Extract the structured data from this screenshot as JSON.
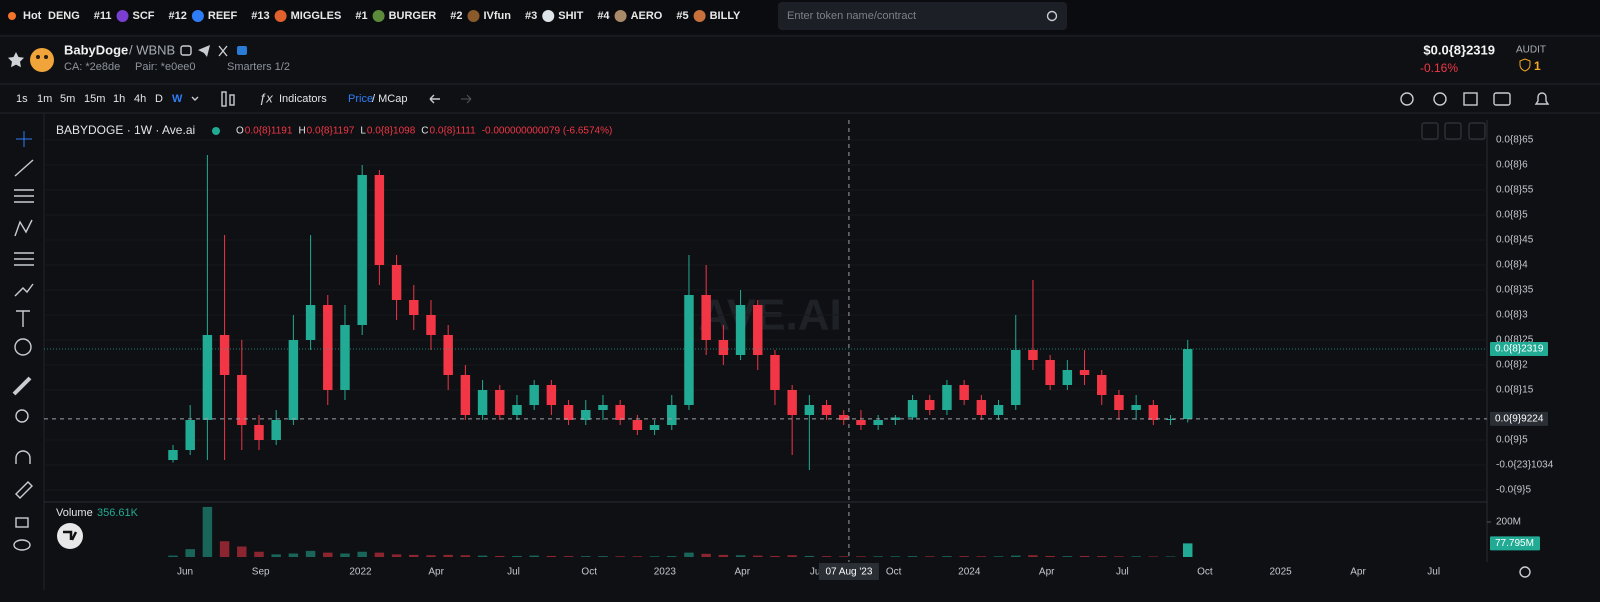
{
  "topbar": {
    "hot": "Hot",
    "trending": [
      {
        "name": "DENG"
      },
      {
        "rank": "#11",
        "name": "SCF"
      },
      {
        "rank": "#12",
        "name": "REEF"
      },
      {
        "rank": "#13",
        "name": "MIGGLES"
      },
      {
        "rank": "#1",
        "name": "BURGER"
      },
      {
        "rank": "#2",
        "name": "IVfun"
      },
      {
        "rank": "#3",
        "name": "SHIT"
      },
      {
        "rank": "#4",
        "name": "AERO"
      },
      {
        "rank": "#5",
        "name": "BILLY"
      }
    ],
    "search_placeholder": "Enter token name/contract"
  },
  "token": {
    "name": "BabyDoge",
    "pair": "/ WBNB",
    "ca": "CA: *2e8de",
    "pair_address": "Pair: *e0ee0",
    "smarters": "Smarters 1/2",
    "price": "$0.0{8}2319",
    "change": "-0.16%",
    "audit": "AUDIT",
    "audit_count": "1"
  },
  "toolbar": {
    "intervals": [
      "1s",
      "1m",
      "5m",
      "15m",
      "1h",
      "4h",
      "D",
      "W"
    ],
    "indicators": "Indicators",
    "price": "Price",
    "mcap": "/ MCap"
  },
  "chart_data": {
    "type": "candlestick",
    "title": "BABYDOGE · 1W · Ave.ai",
    "watermark": "AVE.AI",
    "ohlc_legend": {
      "o_key": "O",
      "o": "0.0{8}1191",
      "h_key": "H",
      "h": "0.0{8}1197",
      "l_key": "L",
      "l": "0.0{8}1098",
      "c_key": "C",
      "c": "0.0{8}1111",
      "change": "-0.000000000079 (-6.6574%)"
    },
    "up_color": "#22ab94",
    "down_color": "#f23645",
    "open": [
      1e-11,
      3e-11,
      9e-11,
      2.6e-10,
      1.8e-10,
      8e-11,
      5e-11,
      9e-11,
      2.5e-10,
      3.2e-10,
      1.5e-10,
      2.8e-10,
      5.8e-10,
      4e-10,
      3.3e-10,
      3e-10,
      2.6e-10,
      1.8e-10,
      1e-10,
      1.5e-10,
      1e-10,
      1.2e-10,
      1.6e-10,
      1.2e-10,
      9e-11,
      1.1e-10,
      1.2e-10,
      9e-11,
      7e-11,
      8e-11,
      1.2e-10,
      3.4e-10,
      2.5e-10,
      2.2e-10,
      3.2e-10,
      2.2e-10,
      1.5e-10,
      1e-10,
      1.2e-10,
      1e-10,
      9e-11,
      8e-11,
      9e-11,
      9.5e-11,
      1.3e-10,
      1.1e-10,
      1.6e-10,
      1.3e-10,
      1e-10,
      1.2e-10,
      2.3e-10,
      2.1e-10,
      1.6e-10,
      1.9e-10,
      1.8e-10,
      1.4e-10,
      1.1e-10,
      1.2e-10,
      9e-11,
      9.2e-11
    ],
    "high": [
      4e-11,
      1.2e-10,
      6.2e-10,
      4.6e-10,
      2.5e-10,
      1e-10,
      1.1e-10,
      3e-10,
      4.6e-10,
      3.4e-10,
      3.2e-10,
      6e-10,
      5.9e-10,
      4.2e-10,
      3.6e-10,
      3.3e-10,
      2.8e-10,
      2e-10,
      1.7e-10,
      1.6e-10,
      1.4e-10,
      1.7e-10,
      1.7e-10,
      1.3e-10,
      1.3e-10,
      1.4e-10,
      1.3e-10,
      1e-10,
      9e-11,
      1.4e-10,
      4.2e-10,
      4e-10,
      2.8e-10,
      3.5e-10,
      3.3e-10,
      2.3e-10,
      1.6e-10,
      1.4e-10,
      1.3e-10,
      1.1e-10,
      1.1e-10,
      1e-10,
      1e-10,
      1.4e-10,
      1.4e-10,
      1.7e-10,
      1.7e-10,
      1.4e-10,
      1.3e-10,
      3e-10,
      3.7e-10,
      2.2e-10,
      2.1e-10,
      2.3e-10,
      1.9e-10,
      1.5e-10,
      1.4e-10,
      1.3e-10,
      1e-10,
      2.5e-10
    ],
    "low": [
      5e-12,
      2e-11,
      1e-11,
      1e-11,
      3e-11,
      3e-11,
      4e-11,
      8e-11,
      2.3e-10,
      1.2e-10,
      1.3e-10,
      2.6e-10,
      3.6e-10,
      2.9e-10,
      2.7e-10,
      2.3e-10,
      1.5e-10,
      9e-11,
      9e-11,
      9e-11,
      9e-11,
      1.1e-10,
      1e-10,
      8e-11,
      8e-11,
      9e-11,
      8e-11,
      6e-11,
      6e-11,
      7e-11,
      1.1e-10,
      2.2e-10,
      2e-10,
      2.1e-10,
      1.9e-10,
      1.2e-10,
      2e-11,
      -1e-11,
      9e-11,
      8e-11,
      7e-11,
      7e-11,
      8e-11,
      9e-11,
      1e-10,
      1e-10,
      1.2e-10,
      9e-11,
      9e-11,
      1.1e-10,
      1.9e-10,
      1.5e-10,
      1.5e-10,
      1.6e-10,
      1.2e-10,
      9e-11,
      9e-11,
      8e-11,
      8e-11,
      8.5e-11
    ],
    "close": [
      3e-11,
      9e-11,
      2.6e-10,
      1.8e-10,
      8e-11,
      5e-11,
      9e-11,
      2.5e-10,
      3.2e-10,
      1.5e-10,
      2.8e-10,
      5.8e-10,
      4e-10,
      3.3e-10,
      3e-10,
      2.6e-10,
      1.8e-10,
      1e-10,
      1.5e-10,
      1e-10,
      1.2e-10,
      1.6e-10,
      1.2e-10,
      9e-11,
      1.1e-10,
      1.2e-10,
      9e-11,
      7e-11,
      8e-11,
      1.2e-10,
      3.4e-10,
      2.5e-10,
      2.2e-10,
      3.2e-10,
      2.2e-10,
      1.5e-10,
      1e-10,
      1.2e-10,
      1e-10,
      9e-11,
      8e-11,
      9e-11,
      9.5e-11,
      1.3e-10,
      1.1e-10,
      1.6e-10,
      1.3e-10,
      1e-10,
      1.2e-10,
      2.3e-10,
      2.1e-10,
      1.6e-10,
      1.9e-10,
      1.8e-10,
      1.4e-10,
      1.1e-10,
      1.2e-10,
      9e-11,
      9.2e-11,
      2.319e-10
    ],
    "xlim": [
      -7.5,
      76.4
    ],
    "xticks": [
      {
        "value": 0.7,
        "label": "Jun"
      },
      {
        "value": 5.1,
        "label": "Sep"
      },
      {
        "value": 10.9,
        "label": "2022"
      },
      {
        "value": 15.3,
        "label": "Apr"
      },
      {
        "value": 19.8,
        "label": "Jul"
      },
      {
        "value": 24.2,
        "label": "Oct"
      },
      {
        "value": 28.6,
        "label": "2023"
      },
      {
        "value": 33.1,
        "label": "Apr"
      },
      {
        "value": 37.4,
        "label": "Jul"
      },
      {
        "value": 41.9,
        "label": "Oct"
      },
      {
        "value": 46.3,
        "label": "2024"
      },
      {
        "value": 50.8,
        "label": "Apr"
      },
      {
        "value": 55.2,
        "label": "Jul"
      },
      {
        "value": 60,
        "label": "Oct"
      },
      {
        "value": 64.4,
        "label": "2025"
      },
      {
        "value": 68.9,
        "label": "Apr"
      },
      {
        "value": 73.3,
        "label": "Jul"
      }
    ],
    "ylim": [
      -7e-11,
      6.9e-10
    ],
    "yticks": [
      {
        "value": 6.5e-10,
        "label": "0.0{8}65"
      },
      {
        "value": 6e-10,
        "label": "0.0{8}6"
      },
      {
        "value": 5.5e-10,
        "label": "0.0{8}55"
      },
      {
        "value": 5e-10,
        "label": "0.0{8}5"
      },
      {
        "value": 4.5e-10,
        "label": "0.0{8}45"
      },
      {
        "value": 4e-10,
        "label": "0.0{8}4"
      },
      {
        "value": 3.5e-10,
        "label": "0.0{8}35"
      },
      {
        "value": 3e-10,
        "label": "0.0{8}3"
      },
      {
        "value": 2.5e-10,
        "label": "0.0{8}25"
      },
      {
        "value": 2e-10,
        "label": "0.0{8}2"
      },
      {
        "value": 1.5e-10,
        "label": "0.0{8}15"
      },
      {
        "value": 5e-11,
        "label": "0.0{9}5"
      },
      {
        "value": -1.034e-25,
        "label": "-0.0{23}1034"
      },
      {
        "value": -5e-11,
        "label": "-0.0{9}5"
      }
    ],
    "last_price": {
      "value": 2.319e-10,
      "label": "0.0{8}2319"
    },
    "crosshair": {
      "x": {
        "value": 39.3,
        "label": "07 Aug '23"
      },
      "y": {
        "value": 9.224e-11,
        "label": "0.0{9}9224"
      }
    },
    "volume": {
      "title": "Volume",
      "current": "356.61K",
      "values": [
        8000000.0,
        45000000.0,
        286000000.0,
        90000000.0,
        60000000.0,
        30000000.0,
        15000000.0,
        20000000.0,
        35000000.0,
        25000000.0,
        20000000.0,
        30000000.0,
        25000000.0,
        15000000.0,
        12000000.0,
        10000000.0,
        12000000.0,
        10000000.0,
        8000000.0,
        6000000.0,
        6000000.0,
        8000000.0,
        6000000.0,
        5000000.0,
        5000000.0,
        5000000.0,
        4000000.0,
        4000000.0,
        4000000.0,
        5000000.0,
        25000000.0,
        18000000.0,
        12000000.0,
        10000000.0,
        8000000.0,
        6000000.0,
        10000000.0,
        6000000.0,
        5000000.0,
        4000000.0,
        4000000.0,
        4000000.0,
        4000000.0,
        5000000.0,
        4000000.0,
        5000000.0,
        5000000.0,
        4000000.0,
        4000000.0,
        8000000.0,
        10000000.0,
        6000000.0,
        5000000.0,
        6000000.0,
        5000000.0,
        4000000.0,
        4000000.0,
        3000000.0,
        3000000.0,
        77795000
      ],
      "ylim": [
        0,
        297000000
      ],
      "yticks": [
        {
          "value": 200000000,
          "label": "200M"
        }
      ],
      "last": {
        "value": 77795000,
        "label": "77.795M"
      }
    }
  }
}
